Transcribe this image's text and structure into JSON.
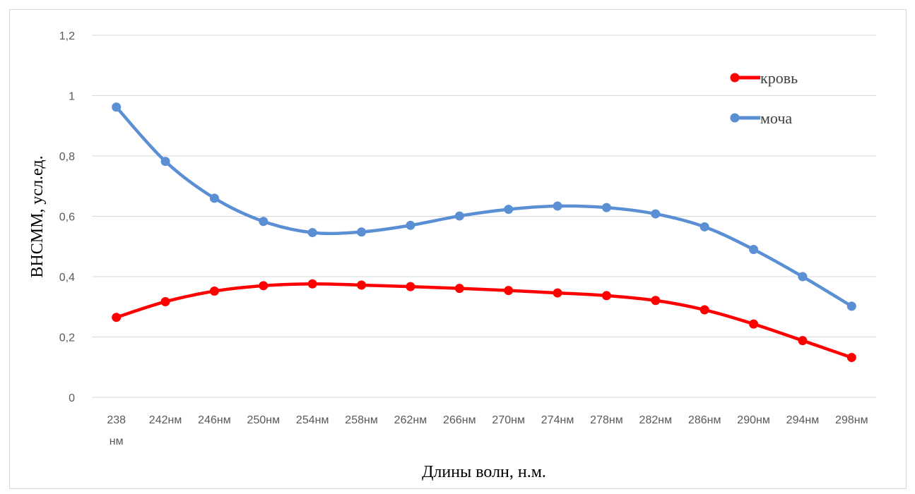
{
  "chart_data": {
    "type": "line",
    "xlabel": "Длины волн, н.м.",
    "ylabel": "ВНСММ, усл.ед.",
    "categories": [
      "238 нм",
      "242нм",
      "246нм",
      "250нм",
      "254нм",
      "258нм",
      "262нм",
      "266нм",
      "270нм",
      "274нм",
      "278нм",
      "282нм",
      "286нм",
      "290нм",
      "294нм",
      "298нм"
    ],
    "category_lines": [
      [
        "238",
        "нм"
      ],
      [
        "242нм"
      ],
      [
        "246нм"
      ],
      [
        "250нм"
      ],
      [
        "254нм"
      ],
      [
        "258нм"
      ],
      [
        "262нм"
      ],
      [
        "266нм"
      ],
      [
        "270нм"
      ],
      [
        "274нм"
      ],
      [
        "278нм"
      ],
      [
        "282нм"
      ],
      [
        "286нм"
      ],
      [
        "290нм"
      ],
      [
        "294нм"
      ],
      [
        "298нм"
      ]
    ],
    "ylim": [
      0,
      1.2
    ],
    "yticks": [
      "0",
      "0,2",
      "0,4",
      "0,6",
      "0,8",
      "1",
      "1,2"
    ],
    "ytick_values": [
      0,
      0.2,
      0.4,
      0.6,
      0.8,
      1.0,
      1.2
    ],
    "grid": true,
    "legend_position": "top-right",
    "series": [
      {
        "name": "кровь",
        "color": "#ff0000",
        "values": [
          0.265,
          0.317,
          0.352,
          0.37,
          0.376,
          0.372,
          0.367,
          0.361,
          0.354,
          0.346,
          0.337,
          0.321,
          0.29,
          0.243,
          0.188,
          0.132
        ]
      },
      {
        "name": "моча",
        "color": "#5b8fd4",
        "values": [
          0.962,
          0.782,
          0.66,
          0.583,
          0.546,
          0.548,
          0.57,
          0.601,
          0.623,
          0.634,
          0.629,
          0.608,
          0.565,
          0.49,
          0.4,
          0.302
        ]
      }
    ]
  }
}
